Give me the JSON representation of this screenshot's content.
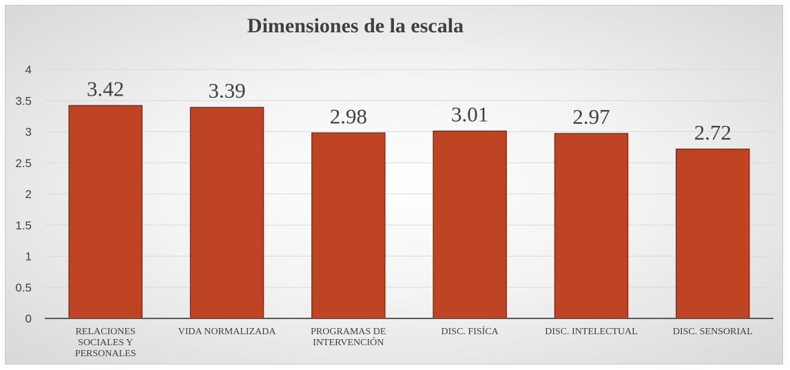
{
  "chart_data": {
    "type": "bar",
    "title": "Dimensiones de la escala",
    "xlabel": "",
    "ylabel": "",
    "ylim": [
      0,
      4
    ],
    "yticks": [
      "0",
      "0.5",
      "1",
      "1.5",
      "2",
      "2.5",
      "3",
      "3.5",
      "4"
    ],
    "categories": [
      [
        "RELACIONES",
        "SOCIALES Y",
        "PERSONALES"
      ],
      [
        "VIDA NORMALIZADA"
      ],
      [
        "PROGRAMAS DE",
        "INTERVENCIÓN"
      ],
      [
        "DISC. FISÍCA"
      ],
      [
        "DISC. INTELECTUAL"
      ],
      [
        "DISC. SENSORIAL"
      ]
    ],
    "values": [
      3.42,
      3.39,
      2.98,
      3.01,
      2.97,
      2.72
    ],
    "data_labels": [
      "3.42",
      "3.39",
      "2.98",
      "3.01",
      "2.97",
      "2.72"
    ],
    "grid": true,
    "legend": "none",
    "colors": {
      "bar_fill": "#be4424",
      "bar_stroke": "#8a2a12",
      "grid": "#d9d9d9",
      "axis": "#595959",
      "text": "#404040"
    }
  }
}
